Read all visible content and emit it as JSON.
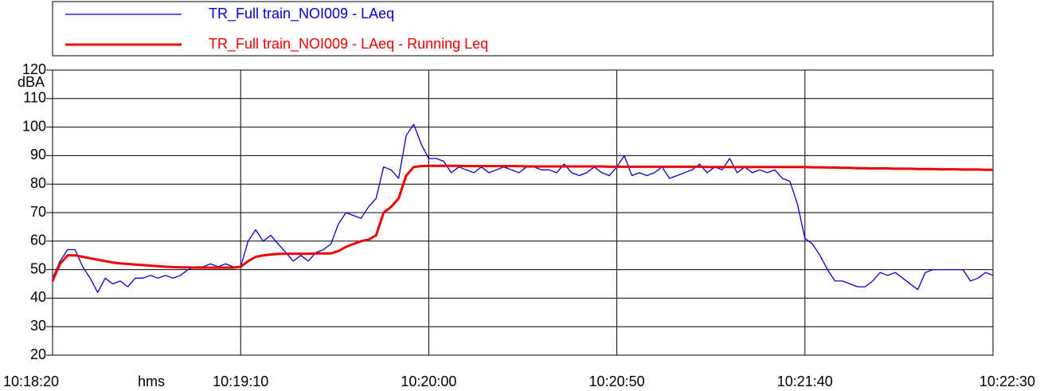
{
  "chart_data": {
    "type": "line",
    "x_unit": "hms",
    "y_label": "dBA",
    "x": [
      "10:18:20",
      "10:18:22",
      "10:18:24",
      "10:18:26",
      "10:18:28",
      "10:18:30",
      "10:18:32",
      "10:18:34",
      "10:18:36",
      "10:18:38",
      "10:18:40",
      "10:18:42",
      "10:18:44",
      "10:18:46",
      "10:18:48",
      "10:18:50",
      "10:18:52",
      "10:18:54",
      "10:18:56",
      "10:18:58",
      "10:19:00",
      "10:19:02",
      "10:19:04",
      "10:19:06",
      "10:19:08",
      "10:19:10",
      "10:19:12",
      "10:19:14",
      "10:19:16",
      "10:19:18",
      "10:19:20",
      "10:19:22",
      "10:19:24",
      "10:19:26",
      "10:19:28",
      "10:19:30",
      "10:19:32",
      "10:19:34",
      "10:19:36",
      "10:19:38",
      "10:19:40",
      "10:19:42",
      "10:19:44",
      "10:19:46",
      "10:19:48",
      "10:19:50",
      "10:19:52",
      "10:19:54",
      "10:19:56",
      "10:19:58",
      "10:20:00",
      "10:20:02",
      "10:20:04",
      "10:20:06",
      "10:20:08",
      "10:20:10",
      "10:20:12",
      "10:20:14",
      "10:20:16",
      "10:20:18",
      "10:20:20",
      "10:20:22",
      "10:20:24",
      "10:20:26",
      "10:20:28",
      "10:20:30",
      "10:20:32",
      "10:20:34",
      "10:20:36",
      "10:20:38",
      "10:20:40",
      "10:20:42",
      "10:20:44",
      "10:20:46",
      "10:20:48",
      "10:20:50",
      "10:20:52",
      "10:20:54",
      "10:20:56",
      "10:20:58",
      "10:21:00",
      "10:21:02",
      "10:21:04",
      "10:21:06",
      "10:21:08",
      "10:21:10",
      "10:21:12",
      "10:21:14",
      "10:21:16",
      "10:21:18",
      "10:21:20",
      "10:21:22",
      "10:21:24",
      "10:21:26",
      "10:21:28",
      "10:21:30",
      "10:21:32",
      "10:21:34",
      "10:21:36",
      "10:21:38",
      "10:21:40",
      "10:21:42",
      "10:21:44",
      "10:21:46",
      "10:21:48",
      "10:21:50",
      "10:21:52",
      "10:21:54",
      "10:21:56",
      "10:21:58",
      "10:22:00",
      "10:22:02",
      "10:22:04",
      "10:22:06",
      "10:22:08",
      "10:22:10",
      "10:22:12",
      "10:22:14",
      "10:22:16",
      "10:22:18",
      "10:22:20",
      "10:22:22",
      "10:22:24",
      "10:22:26",
      "10:22:28",
      "10:22:30"
    ],
    "series": [
      {
        "name": "TR_Full train_NOI009 - LAeq",
        "color": "#0000cc",
        "width": 1.3,
        "values": [
          47,
          53,
          57,
          57,
          51,
          47,
          42,
          47,
          45,
          46,
          44,
          47,
          47,
          48,
          47,
          48,
          47,
          48,
          50,
          51,
          51,
          52,
          51,
          52,
          51,
          51,
          60,
          64,
          60,
          62,
          59,
          56,
          53,
          55,
          53,
          56,
          57,
          59,
          66,
          70,
          69,
          68,
          72,
          75,
          86,
          85,
          82,
          97,
          101,
          94,
          89,
          89,
          88,
          84,
          86,
          85,
          84,
          86,
          84,
          85,
          86,
          85,
          84,
          86,
          86,
          85,
          85,
          84,
          87,
          84,
          83,
          84,
          86,
          84,
          83,
          86,
          90,
          83,
          84,
          83,
          84,
          86,
          82,
          83,
          84,
          85,
          87,
          84,
          86,
          85,
          89,
          84,
          86,
          84,
          85,
          84,
          85,
          82,
          81,
          73,
          61,
          59,
          55,
          50,
          46,
          46,
          45,
          44,
          44,
          46,
          49,
          48,
          49,
          47,
          45,
          43,
          49,
          50,
          50,
          50,
          50,
          50,
          46,
          47,
          49,
          48
        ]
      },
      {
        "name": "TR_Full train_NOI009 - LAeq - Running Leq",
        "color": "#ee0000",
        "width": 3,
        "values": [
          46,
          52,
          55,
          55,
          54.5,
          54,
          53.5,
          53,
          52.5,
          52.2,
          52,
          51.8,
          51.6,
          51.4,
          51.2,
          51,
          50.9,
          50.8,
          50.8,
          50.7,
          50.7,
          50.7,
          50.7,
          50.7,
          50.7,
          51,
          53,
          54.5,
          55,
          55.3,
          55.5,
          55.6,
          55.6,
          55.6,
          55.6,
          55.7,
          55.7,
          55.7,
          56.5,
          58,
          59,
          60,
          60.5,
          62,
          70,
          72,
          75,
          83,
          86,
          86.3,
          86.4,
          86.4,
          86.4,
          86.4,
          86.4,
          86.3,
          86.3,
          86.3,
          86.3,
          86.3,
          86.3,
          86.3,
          86.3,
          86.2,
          86.2,
          86.2,
          86.2,
          86.2,
          86.2,
          86.2,
          86.2,
          86.2,
          86.2,
          86.2,
          86.1,
          86.1,
          86.1,
          86.1,
          86.1,
          86.1,
          86.1,
          86.1,
          86.1,
          86.1,
          86.1,
          86.1,
          86.1,
          86,
          86,
          86,
          86,
          86,
          86,
          86,
          86,
          86,
          86,
          86,
          86,
          86,
          86,
          85.9,
          85.9,
          85.8,
          85.8,
          85.7,
          85.7,
          85.6,
          85.6,
          85.5,
          85.5,
          85.5,
          85.4,
          85.4,
          85.4,
          85.3,
          85.3,
          85.3,
          85.2,
          85.2,
          85.2,
          85.1,
          85.1,
          85.1,
          85,
          85
        ]
      }
    ],
    "xlim": [
      "10:18:20",
      "10:22:30"
    ],
    "xticks": [
      "10:18:20",
      "10:19:10",
      "10:20:00",
      "10:20:50",
      "10:21:40",
      "10:22:30"
    ],
    "ylim": [
      20,
      120
    ],
    "yticks": [
      20,
      30,
      40,
      50,
      60,
      70,
      80,
      90,
      100,
      110,
      120
    ],
    "grid": true,
    "legend": "top"
  }
}
